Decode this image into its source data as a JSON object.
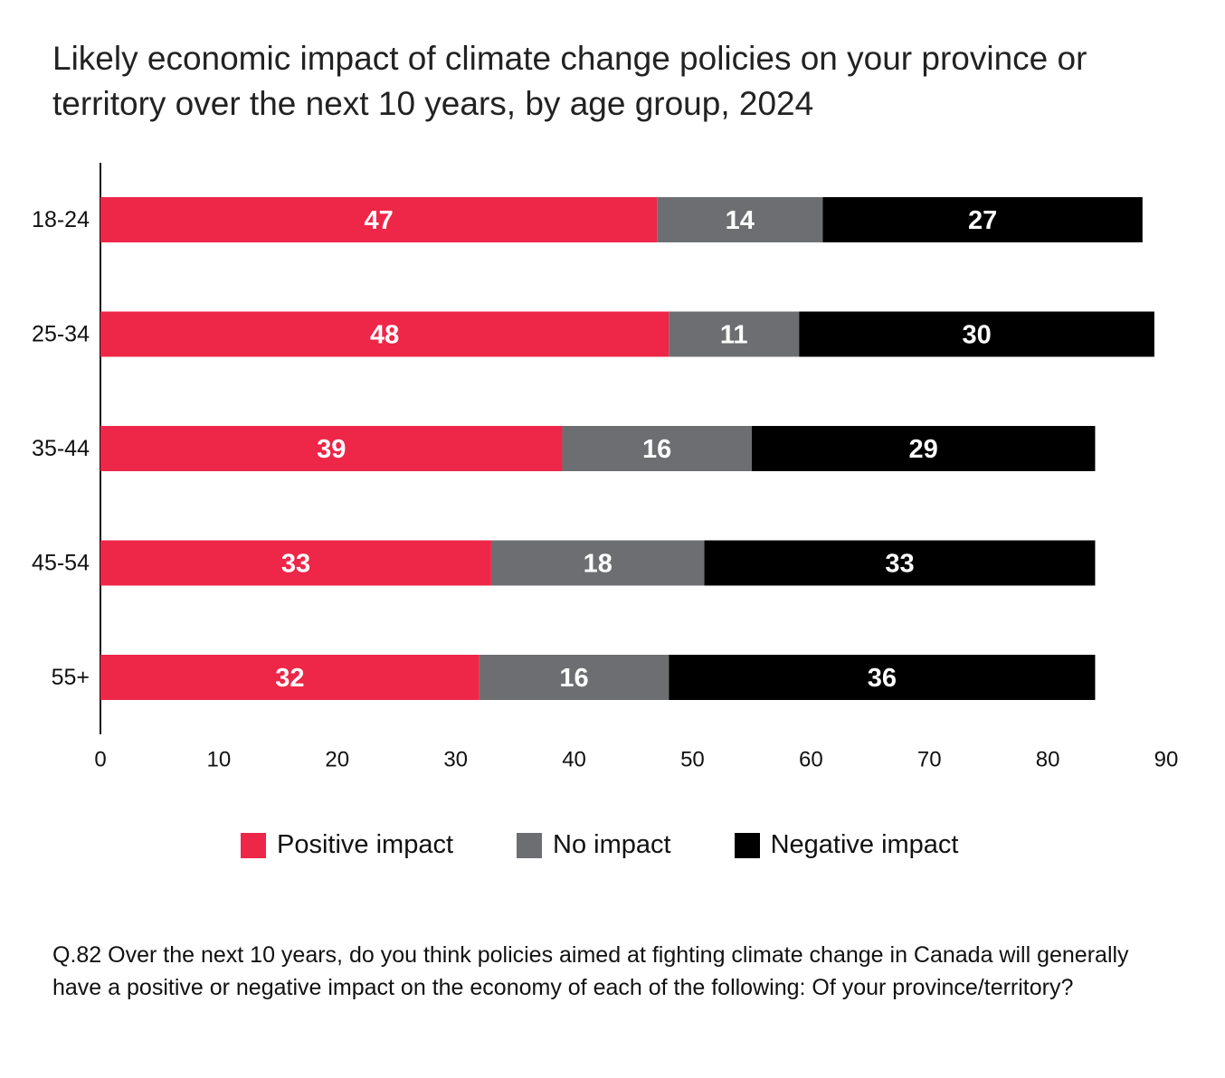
{
  "chart_data": {
    "type": "bar",
    "orientation": "horizontal",
    "stacked": true,
    "title": "Likely economic impact of climate change policies on your province or territory over the next 10 years, by age group, 2024",
    "categories": [
      "18-24",
      "25-34",
      "35-44",
      "45-54",
      "55+"
    ],
    "series": [
      {
        "name": "Positive impact",
        "color": "#EE2647",
        "values": [
          47,
          48,
          39,
          33,
          32
        ]
      },
      {
        "name": "No impact",
        "color": "#6D6E71",
        "values": [
          14,
          11,
          16,
          18,
          16
        ]
      },
      {
        "name": "Negative impact",
        "color": "#000000",
        "values": [
          27,
          30,
          29,
          33,
          36
        ]
      }
    ],
    "xlim": [
      0,
      90
    ],
    "xticks": [
      0,
      10,
      20,
      30,
      40,
      50,
      60,
      70,
      80,
      90
    ],
    "grid": false,
    "legend_position": "bottom"
  },
  "footnote": "Q.82 Over the next 10 years, do you think policies aimed at fighting climate change in Canada will generally have a positive or negative impact on the economy of each of the following: Of your province/territory?"
}
